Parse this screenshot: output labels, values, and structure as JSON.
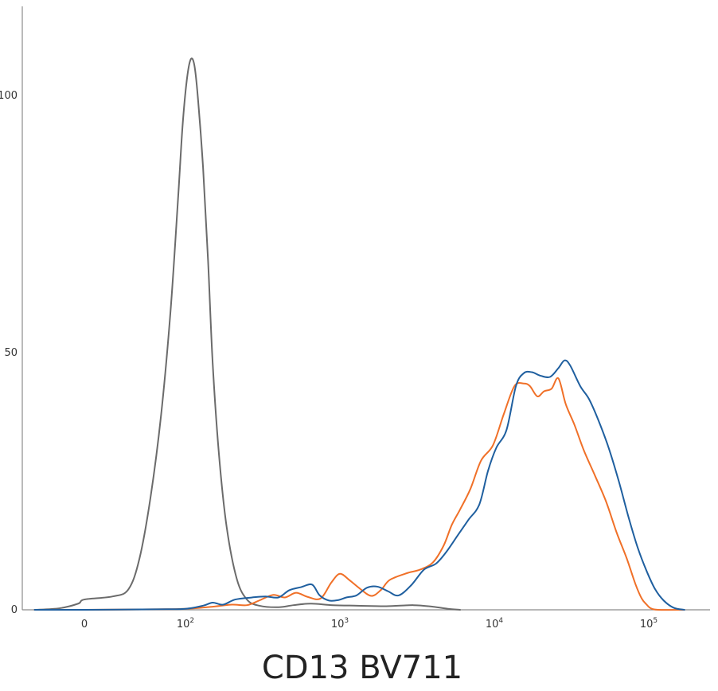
{
  "chart_data": {
    "type": "line",
    "title": "",
    "xlabel": "CD13 BV711",
    "ylabel": "",
    "x_scale": "biexponential",
    "ylim": [
      0,
      112
    ],
    "grid": false,
    "legend": "none",
    "x_ticks": [
      {
        "value": 0,
        "label": "0"
      },
      {
        "value": 100,
        "label": "10",
        "exp": "2"
      },
      {
        "value": 1000,
        "label": "10",
        "exp": "3"
      },
      {
        "value": 10000,
        "label": "10",
        "exp": "4"
      },
      {
        "value": 100000,
        "label": "10",
        "exp": "5"
      }
    ],
    "y_ticks": [
      {
        "value": 0,
        "label": "0"
      },
      {
        "value": 50,
        "label": "50"
      },
      {
        "value": 100,
        "label": "100"
      }
    ],
    "series": [
      {
        "color": "#6b6b6b",
        "points": [
          [
            -40,
            0
          ],
          [
            -20,
            0.3
          ],
          [
            -5,
            1.2
          ],
          [
            0,
            2
          ],
          [
            15,
            2.6
          ],
          [
            30,
            4
          ],
          [
            42,
            10
          ],
          [
            55,
            22
          ],
          [
            68,
            38
          ],
          [
            80,
            58
          ],
          [
            90,
            80
          ],
          [
            96,
            94
          ],
          [
            102,
            103
          ],
          [
            108,
            107
          ],
          [
            114,
            106
          ],
          [
            120,
            100
          ],
          [
            130,
            86
          ],
          [
            140,
            68
          ],
          [
            150,
            48
          ],
          [
            165,
            30
          ],
          [
            185,
            16
          ],
          [
            215,
            6
          ],
          [
            250,
            2
          ],
          [
            300,
            0.8
          ],
          [
            400,
            0.5
          ],
          [
            500,
            0.9
          ],
          [
            650,
            1.2
          ],
          [
            900,
            0.9
          ],
          [
            1300,
            0.8
          ],
          [
            2000,
            0.7
          ],
          [
            3000,
            0.9
          ],
          [
            4000,
            0.6
          ],
          [
            5000,
            0.2
          ],
          [
            6000,
            0
          ]
        ]
      },
      {
        "color": "#f07028",
        "points": [
          [
            -40,
            0
          ],
          [
            0,
            0
          ],
          [
            60,
            0.1
          ],
          [
            100,
            0.2
          ],
          [
            150,
            0.6
          ],
          [
            200,
            1
          ],
          [
            250,
            0.9
          ],
          [
            300,
            1.8
          ],
          [
            370,
            2.9
          ],
          [
            440,
            2.4
          ],
          [
            520,
            3.3
          ],
          [
            620,
            2.5
          ],
          [
            750,
            2.2
          ],
          [
            880,
            5.3
          ],
          [
            1000,
            7
          ],
          [
            1150,
            5.8
          ],
          [
            1350,
            4.1
          ],
          [
            1600,
            2.7
          ],
          [
            1850,
            3.9
          ],
          [
            2100,
            5.8
          ],
          [
            2700,
            7.1
          ],
          [
            3300,
            7.8
          ],
          [
            4000,
            9.2
          ],
          [
            4700,
            12.5
          ],
          [
            5300,
            16.5
          ],
          [
            6000,
            19.5
          ],
          [
            7000,
            23.5
          ],
          [
            8200,
            29
          ],
          [
            9800,
            32
          ],
          [
            11500,
            38
          ],
          [
            13500,
            43.5
          ],
          [
            15500,
            44
          ],
          [
            17000,
            43.5
          ],
          [
            19000,
            41.5
          ],
          [
            21000,
            42.5
          ],
          [
            23500,
            43
          ],
          [
            26000,
            45
          ],
          [
            29000,
            40
          ],
          [
            33000,
            36
          ],
          [
            38000,
            31
          ],
          [
            45000,
            26
          ],
          [
            53000,
            21
          ],
          [
            62000,
            15
          ],
          [
            72000,
            10
          ],
          [
            82000,
            5
          ],
          [
            90000,
            2.2
          ],
          [
            97000,
            1
          ],
          [
            103000,
            0.3
          ],
          [
            115000,
            0
          ],
          [
            170000,
            0
          ]
        ]
      },
      {
        "color": "#1f5f9f",
        "points": [
          [
            -40,
            0
          ],
          [
            0,
            0
          ],
          [
            60,
            0.1
          ],
          [
            100,
            0.2
          ],
          [
            130,
            0.8
          ],
          [
            150,
            1.4
          ],
          [
            175,
            1
          ],
          [
            210,
            2
          ],
          [
            270,
            2.4
          ],
          [
            330,
            2.6
          ],
          [
            400,
            2.4
          ],
          [
            470,
            3.8
          ],
          [
            560,
            4.4
          ],
          [
            660,
            4.9
          ],
          [
            740,
            2.8
          ],
          [
            850,
            1.8
          ],
          [
            980,
            1.9
          ],
          [
            1100,
            2.4
          ],
          [
            1280,
            2.8
          ],
          [
            1500,
            4.3
          ],
          [
            1750,
            4.5
          ],
          [
            2050,
            3.6
          ],
          [
            2400,
            2.8
          ],
          [
            2900,
            4.8
          ],
          [
            3500,
            7.8
          ],
          [
            4200,
            9
          ],
          [
            4900,
            11.3
          ],
          [
            5800,
            14.5
          ],
          [
            6800,
            17.5
          ],
          [
            8000,
            20.5
          ],
          [
            9100,
            27
          ],
          [
            10300,
            31.5
          ],
          [
            12000,
            35
          ],
          [
            13800,
            43.5
          ],
          [
            15500,
            46
          ],
          [
            17500,
            46.2
          ],
          [
            20000,
            45.5
          ],
          [
            23000,
            45.3
          ],
          [
            26000,
            47
          ],
          [
            28500,
            48.5
          ],
          [
            31000,
            47.5
          ],
          [
            36000,
            43.5
          ],
          [
            41000,
            41
          ],
          [
            47000,
            37
          ],
          [
            55000,
            31.5
          ],
          [
            64000,
            25
          ],
          [
            74000,
            18
          ],
          [
            85000,
            12
          ],
          [
            97000,
            7.5
          ],
          [
            110000,
            4
          ],
          [
            125000,
            1.8
          ],
          [
            145000,
            0.4
          ],
          [
            170000,
            0
          ]
        ]
      }
    ]
  }
}
